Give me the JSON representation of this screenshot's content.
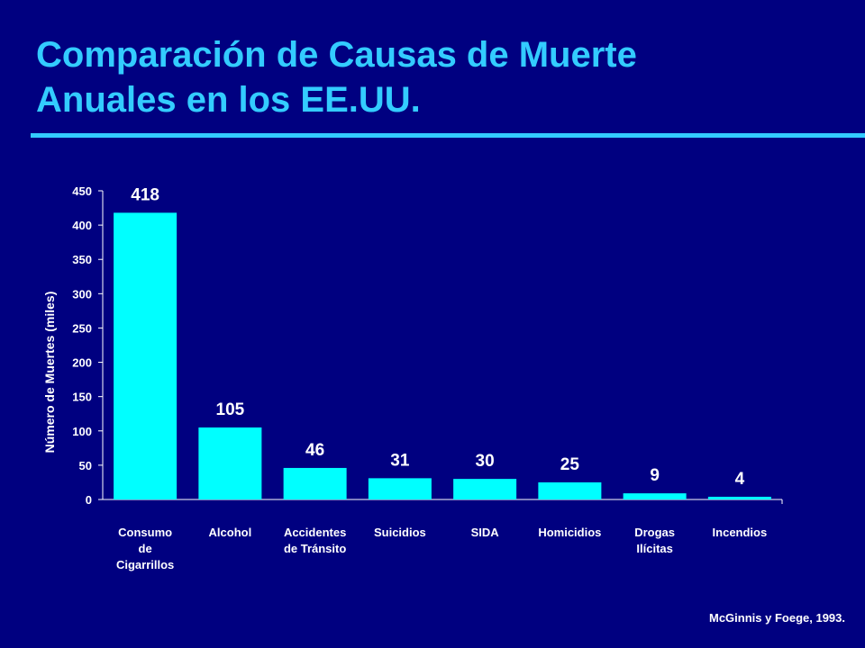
{
  "slide": {
    "title_line1": "Comparación de Causas de Muerte",
    "title_line2": "Anuales en los EE.UU.",
    "source": "McGinnis y Foege, 1993."
  },
  "colors": {
    "background": "#000080",
    "title": "#33ccff",
    "bar": "#00ffff",
    "text": "#ffffff"
  },
  "chart_data": {
    "type": "bar",
    "categories": [
      [
        "Consumo",
        "de",
        "Cigarrillos"
      ],
      [
        "Alcohol"
      ],
      [
        "Accidentes",
        "de Tránsito"
      ],
      [
        "Suicidios"
      ],
      [
        "SIDA"
      ],
      [
        "Homicidios"
      ],
      [
        "Drogas",
        "Ilícitas"
      ],
      [
        "Incendios"
      ]
    ],
    "values": [
      418,
      105,
      46,
      31,
      30,
      25,
      9,
      4
    ],
    "ylabel": "Número de Muertes (miles)",
    "ylim": [
      0,
      450
    ],
    "yticks": [
      0,
      50,
      100,
      150,
      200,
      250,
      300,
      350,
      400,
      450
    ],
    "grid": false,
    "legend": "none"
  }
}
